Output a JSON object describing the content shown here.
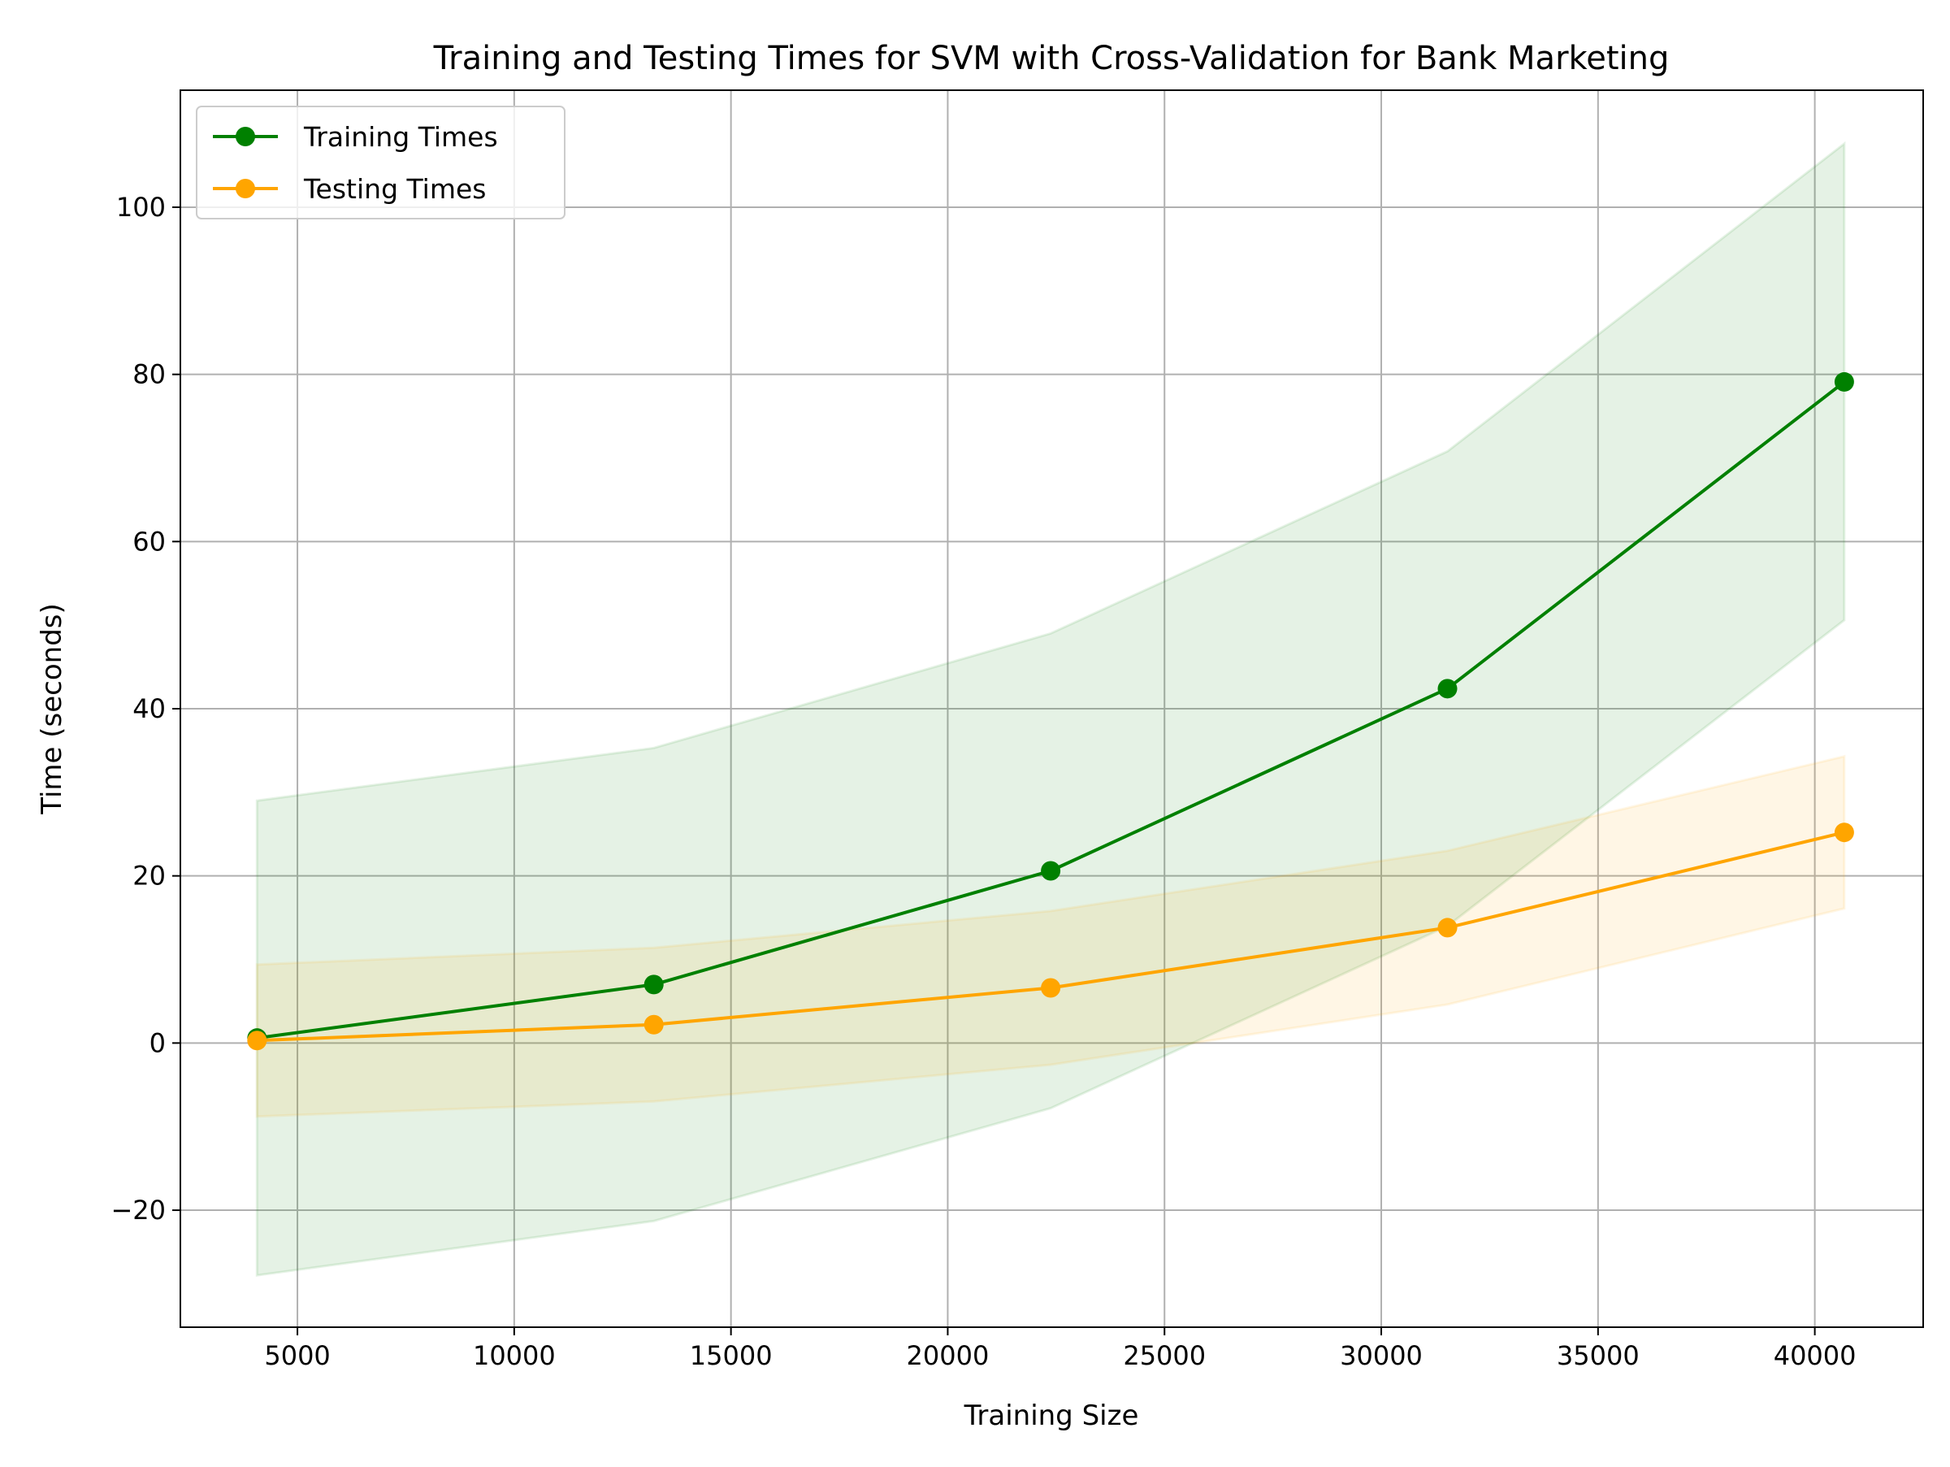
{
  "chart_data": {
    "type": "line",
    "title": "Training and Testing Times for SVM with Cross-Validation for Bank Marketing",
    "xlabel": "Training Size",
    "ylabel": "Time (seconds)",
    "xlim": [
      2300,
      42500
    ],
    "ylim": [
      -34,
      114
    ],
    "xticks": [
      5000,
      10000,
      15000,
      20000,
      25000,
      30000,
      35000,
      40000
    ],
    "xtick_labels": [
      "5000",
      "10000",
      "15000",
      "20000",
      "25000",
      "30000",
      "35000",
      "40000"
    ],
    "yticks": [
      -20,
      0,
      20,
      40,
      60,
      80,
      100
    ],
    "ytick_labels": [
      "−20",
      "0",
      "20",
      "40",
      "60",
      "80",
      "100"
    ],
    "grid": true,
    "legend_position": "top-left",
    "x": [
      4068,
      13221,
      22374,
      31527,
      40680
    ],
    "series": [
      {
        "name": "Training Times",
        "color": "#008000",
        "values": [
          0.6,
          7.0,
          20.6,
          42.4,
          79.1
        ],
        "band_lower": [
          -27.8,
          -21.3,
          -7.8,
          14.0,
          50.6
        ],
        "band_upper": [
          29.0,
          35.3,
          49.0,
          70.8,
          107.6
        ]
      },
      {
        "name": "Testing Times",
        "color": "#FFA500",
        "values": [
          0.3,
          2.2,
          6.6,
          13.8,
          25.2
        ],
        "band_lower": [
          -8.8,
          -7.0,
          -2.6,
          4.6,
          16.1
        ],
        "band_upper": [
          9.4,
          11.4,
          15.8,
          23.0,
          34.3
        ]
      }
    ]
  }
}
